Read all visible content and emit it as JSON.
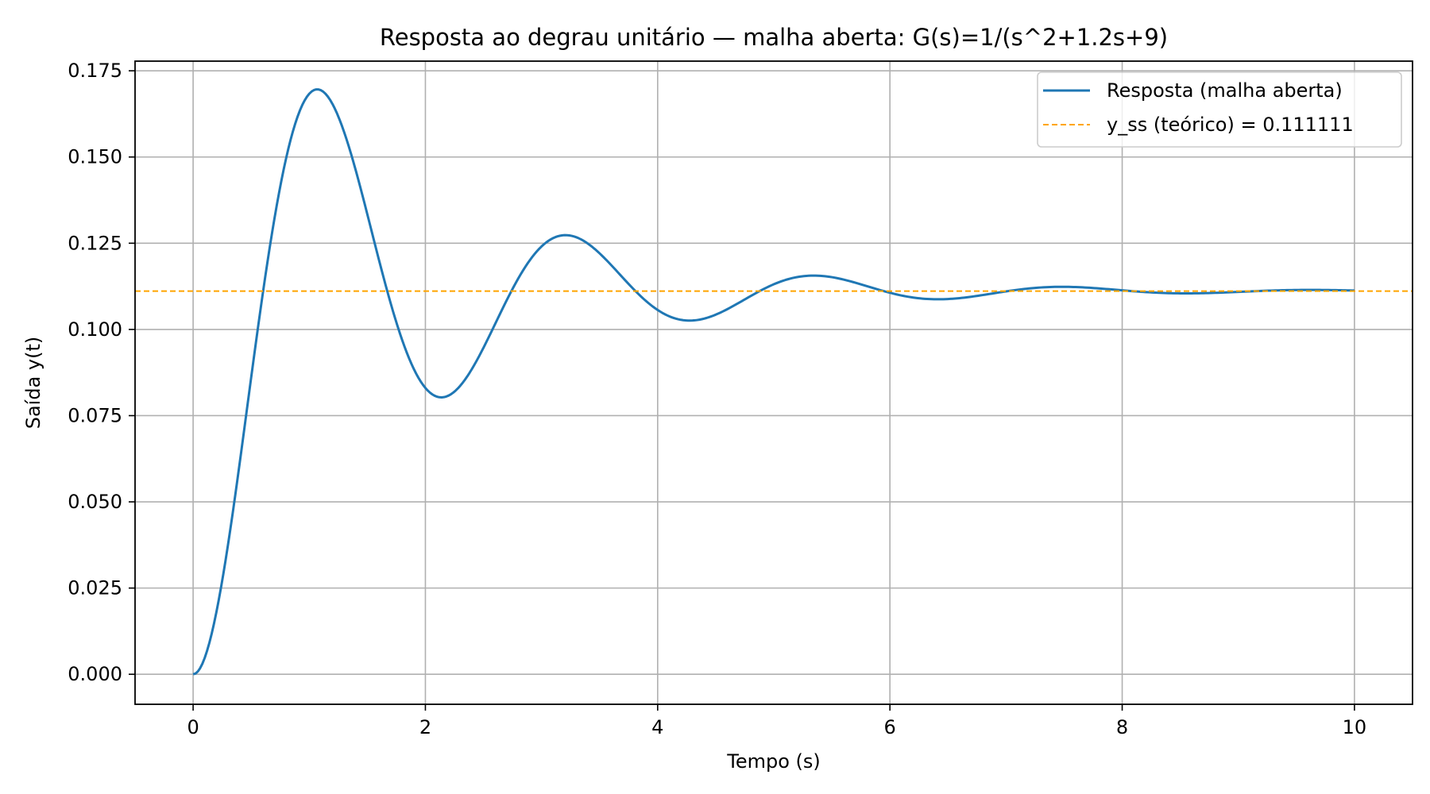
{
  "chart_data": {
    "type": "line",
    "title": "Resposta ao degrau unitário — malha aberta: G(s)=1/(s^2+1.2s+9)",
    "xlabel": "Tempo (s)",
    "ylabel": "Saída y(t)",
    "xlim": [
      -0.5,
      10.5
    ],
    "ylim": [
      -0.0087,
      0.1778
    ],
    "xticks": [
      0,
      2,
      4,
      6,
      8,
      10
    ],
    "xtick_labels": [
      "0",
      "2",
      "4",
      "6",
      "8",
      "10"
    ],
    "yticks": [
      0,
      0.025,
      0.05,
      0.075,
      0.1,
      0.125,
      0.15,
      0.175
    ],
    "ytick_labels": [
      "0.000",
      "0.025",
      "0.050",
      "0.075",
      "0.100",
      "0.125",
      "0.150",
      "0.175"
    ],
    "grid": true,
    "legend_position": "top-right",
    "series": [
      {
        "name": "Resposta (malha aberta)",
        "color": "#1f77b4",
        "style": "solid",
        "model": {
          "type": "second-order-step",
          "numerator": 1,
          "denominator": [
            1,
            1.2,
            9
          ]
        },
        "x_range": [
          0,
          10
        ],
        "samples": 501
      },
      {
        "name": "y_ss (teórico) = 0.111111",
        "color": "#ffa500",
        "style": "dashed",
        "y_constant": 0.111111
      }
    ],
    "legend": {
      "entries": [
        "Resposta (malha aberta)",
        "y_ss (teórico) = 0.111111"
      ]
    }
  }
}
